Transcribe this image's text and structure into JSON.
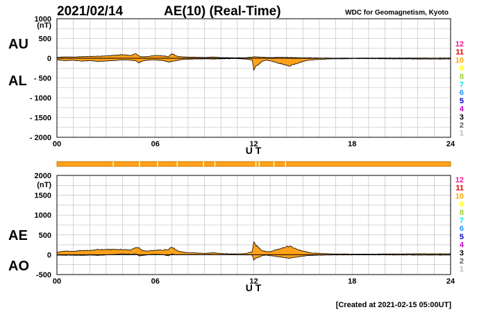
{
  "header": {
    "date": "2021/02/14",
    "title": "AE(10) (Real-Time)",
    "source": "WDC for Geomagnetism, Kyoto"
  },
  "footer": {
    "created": "[Created at 2021-02-15 05:00UT]"
  },
  "station_counts": [
    "12",
    "11",
    "10",
    "9",
    "8",
    "7",
    "6",
    "5",
    "4",
    "3",
    "2",
    "1"
  ],
  "station_colors": [
    "#ff1493",
    "#e00000",
    "#ffa500",
    "#ffff00",
    "#9acd32",
    "#00e5ee",
    "#1e90ff",
    "#0000cd",
    "#cc00cc",
    "#000000",
    "#555555",
    "#bbbbbb"
  ],
  "fill_color": "#ffa11a",
  "status_bar": {
    "base_color": "#ffa11a",
    "tick_color": "#ffffb0",
    "ticks_ut": [
      3.4,
      5.0,
      6.1,
      7.3,
      8.9,
      9.6,
      12.1,
      12.3,
      13.2,
      13.9
    ]
  },
  "chart_data": [
    {
      "type": "area",
      "unit": "(nT)",
      "xlabel": "U T",
      "xticks": [
        "00",
        "06",
        "12",
        "18",
        "24"
      ],
      "xlim": [
        0,
        24
      ],
      "ylim": [
        -2000,
        1000
      ],
      "yticks": [
        "1000",
        "500",
        "0",
        "- 500",
        "- 1000",
        "- 1500",
        "- 2000"
      ],
      "grid": true,
      "series": [
        {
          "name": "AU",
          "x": [
            0,
            0.5,
            1,
            1.5,
            2,
            2.5,
            3,
            3.5,
            4,
            4.5,
            4.8,
            5,
            5.2,
            5.5,
            6,
            6.5,
            6.8,
            7,
            7.3,
            7.5,
            8,
            8.5,
            9,
            9.5,
            10,
            10.5,
            11,
            11.5,
            12,
            12.5,
            13,
            13.5,
            14,
            14.5,
            15,
            15.5,
            16,
            16.5,
            17,
            17.5,
            18,
            19,
            20,
            21,
            22,
            23,
            24
          ],
          "values": [
            20,
            35,
            30,
            40,
            45,
            50,
            60,
            75,
            90,
            70,
            115,
            60,
            35,
            40,
            70,
            60,
            40,
            120,
            55,
            40,
            30,
            25,
            20,
            30,
            15,
            15,
            10,
            10,
            35,
            30,
            15,
            25,
            20,
            15,
            10,
            10,
            5,
            5,
            0,
            5,
            0,
            5,
            5,
            5,
            5,
            5,
            5
          ]
        },
        {
          "name": "AL",
          "x": [
            0,
            0.5,
            1,
            1.5,
            2,
            2.5,
            3,
            3.5,
            4,
            4.5,
            4.8,
            5,
            5.2,
            5.5,
            6,
            6.5,
            6.8,
            7,
            7.3,
            7.5,
            8,
            8.5,
            9,
            9.5,
            10,
            10.5,
            11,
            11.5,
            11.9,
            12,
            12.1,
            12.3,
            12.5,
            12.8,
            13,
            13.5,
            14,
            14.2,
            14.5,
            15,
            15.5,
            16,
            16.5,
            17,
            17.5,
            18,
            19,
            20,
            21,
            22,
            23,
            24
          ],
          "values": [
            -40,
            -60,
            -50,
            -70,
            -60,
            -80,
            -70,
            -60,
            -40,
            -50,
            -60,
            -120,
            -70,
            -50,
            -40,
            -60,
            -100,
            -80,
            -60,
            -40,
            -20,
            -20,
            -15,
            -20,
            -15,
            -10,
            -10,
            -20,
            -40,
            -280,
            -220,
            -150,
            -80,
            -50,
            -60,
            -120,
            -180,
            -200,
            -150,
            -80,
            -40,
            -30,
            -20,
            -15,
            -15,
            -10,
            -10,
            -15,
            -15,
            -20,
            -20,
            -20
          ]
        }
      ]
    },
    {
      "type": "area",
      "unit": "(nT)",
      "xlabel": "U T",
      "xticks": [
        "00",
        "06",
        "12",
        "18",
        "24"
      ],
      "xlim": [
        0,
        24
      ],
      "ylim": [
        -500,
        2000
      ],
      "yticks": [
        "2000",
        "1500",
        "1000",
        "500",
        "0",
        "-500"
      ],
      "grid": true,
      "series": [
        {
          "name": "AE",
          "x": [
            0,
            0.5,
            1,
            1.5,
            2,
            2.5,
            3,
            3.5,
            4,
            4.5,
            4.8,
            5,
            5.2,
            5.5,
            6,
            6.5,
            6.8,
            7,
            7.3,
            7.5,
            8,
            8.5,
            9,
            9.5,
            10,
            10.5,
            11,
            11.5,
            11.9,
            12,
            12.1,
            12.3,
            12.5,
            12.8,
            13,
            13.5,
            14,
            14.2,
            14.5,
            15,
            15.5,
            16,
            16.5,
            17,
            17.5,
            18,
            19,
            20,
            21,
            22,
            23,
            24
          ],
          "values": [
            60,
            95,
            80,
            110,
            105,
            130,
            130,
            135,
            130,
            120,
            175,
            180,
            105,
            90,
            110,
            120,
            140,
            200,
            115,
            80,
            50,
            45,
            35,
            50,
            30,
            25,
            20,
            30,
            75,
            300,
            250,
            180,
            110,
            80,
            75,
            145,
            200,
            215,
            160,
            90,
            45,
            35,
            25,
            20,
            20,
            15,
            15,
            20,
            20,
            25,
            25,
            25
          ]
        },
        {
          "name": "AO",
          "x": [
            0,
            0.5,
            1,
            1.5,
            2,
            2.5,
            3,
            3.5,
            4,
            4.5,
            4.8,
            5,
            5.2,
            5.5,
            6,
            6.5,
            6.8,
            7,
            7.3,
            7.5,
            8,
            8.5,
            9,
            9.5,
            10,
            10.5,
            11,
            11.5,
            11.9,
            12,
            12.1,
            12.3,
            12.5,
            12.8,
            13,
            13.5,
            14,
            14.2,
            14.5,
            15,
            15.5,
            16,
            16.5,
            17,
            17.5,
            18,
            19,
            20,
            21,
            22,
            23,
            24
          ],
          "values": [
            -10,
            -12,
            -10,
            -15,
            -8,
            -15,
            -5,
            8,
            25,
            10,
            28,
            -30,
            -18,
            -5,
            15,
            0,
            -30,
            20,
            -3,
            0,
            5,
            3,
            3,
            5,
            0,
            3,
            0,
            -5,
            -3,
            -125,
            -95,
            -60,
            -25,
            -10,
            -20,
            -50,
            -80,
            -90,
            -65,
            -35,
            -15,
            -10,
            -8,
            -5,
            -5,
            -3,
            -3,
            -5,
            -5,
            -8,
            -8,
            -8
          ]
        }
      ]
    }
  ]
}
